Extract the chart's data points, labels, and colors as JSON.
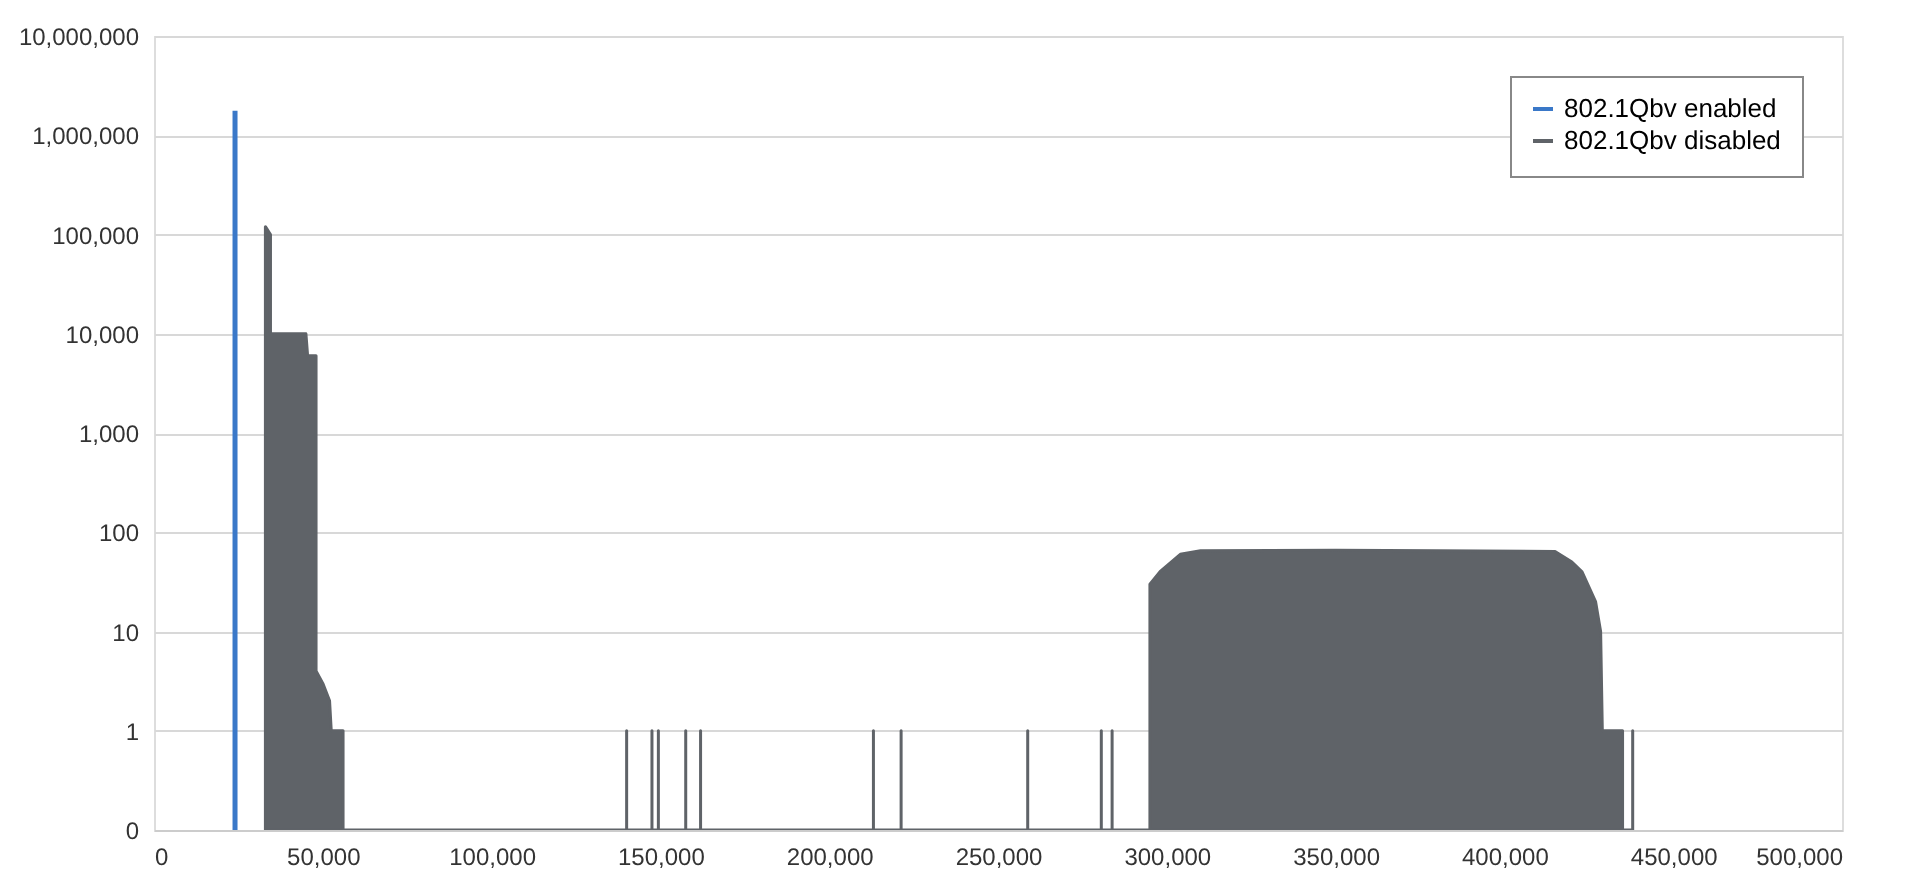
{
  "chart_data": {
    "type": "area",
    "xlim": [
      0,
      500000
    ],
    "xticks": [
      0,
      {
        "value": 50000,
        "label": "50,000"
      },
      {
        "value": 100000,
        "label": "100,000"
      },
      {
        "value": 150000,
        "label": "150,000"
      },
      {
        "value": 200000,
        "label": "200,000"
      },
      {
        "value": 250000,
        "label": "250,000"
      },
      {
        "value": 300000,
        "label": "300,000"
      },
      {
        "value": 350000,
        "label": "350,000"
      },
      {
        "value": 400000,
        "label": "400,000"
      },
      {
        "value": 450000,
        "label": "450,000"
      },
      {
        "value": 500000,
        "label": "500,000"
      }
    ],
    "ylim": [
      0.1,
      10000000
    ],
    "yticks": [
      {
        "value": 0.1,
        "label": "0"
      },
      1,
      10,
      100,
      {
        "value": 1000,
        "label": "1,000"
      },
      {
        "value": 10000,
        "label": "10,000"
      },
      {
        "value": 100000,
        "label": "100,000"
      },
      {
        "value": 1000000,
        "label": "1,000,000"
      },
      {
        "value": 10000000,
        "label": "10,000,000"
      }
    ],
    "log": "y",
    "grid": "y",
    "legend": "top right",
    "series": [
      {
        "name": "802.1Qbv enabled",
        "type": "line",
        "color": "#3a78c8",
        "x": [
          24000,
          24000
        ],
        "values": [
          0.1,
          1770000
        ]
      },
      {
        "name": "802.1Qbv disabled",
        "color": "#5f6368",
        "x": [
          33000,
          33000,
          34500,
          34500,
          45000,
          45500,
          48000,
          48000,
          50000,
          52000,
          52500,
          56000,
          56000,
          140000,
          140000,
          140000,
          147500,
          147500,
          147500,
          149400,
          149400,
          149400,
          157500,
          157500,
          157500,
          161900,
          161900,
          161900,
          213100,
          213100,
          213100,
          221300,
          221300,
          221300,
          258800,
          258800,
          258800,
          280600,
          280600,
          280600,
          283800,
          283800,
          283800,
          295000,
          295000,
          298000,
          304000,
          310000,
          350000,
          380000,
          415000,
          420000,
          423000,
          427000,
          428500,
          429000,
          435000,
          435000,
          438000,
          438000,
          438000
        ],
        "values": [
          0.1,
          120000,
          100000,
          10000,
          10000,
          6000,
          6000,
          4,
          3,
          2,
          1,
          1,
          0.1,
          0.1,
          1,
          0.1,
          0.1,
          1,
          0.1,
          0.1,
          1,
          0.1,
          0.1,
          1,
          0.1,
          0.1,
          1,
          0.1,
          0.1,
          1,
          0.1,
          0.1,
          1,
          0.1,
          0.1,
          1,
          0.1,
          0.1,
          1,
          0.1,
          0.1,
          1,
          0.1,
          0.1,
          30,
          40,
          60,
          65,
          66,
          65,
          64,
          50,
          40,
          20,
          10,
          1,
          1,
          0.1,
          0.1,
          1,
          0.1
        ]
      }
    ]
  }
}
